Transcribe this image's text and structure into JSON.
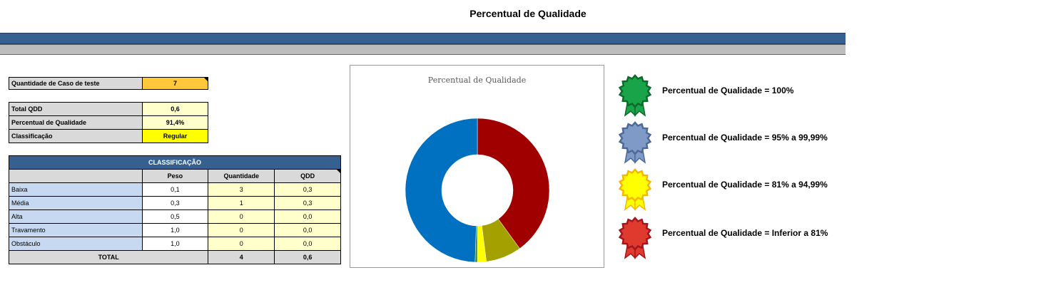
{
  "page_title": "Percentual de Qualidade",
  "summary": {
    "test_cases": {
      "label": "Quantidade de Caso de teste",
      "value": "7"
    },
    "total_qdd": {
      "label": "Total QDD",
      "value": "0,6"
    },
    "quality_pct": {
      "label": "Percentual de Qualidade",
      "value": "91,4%"
    },
    "classification": {
      "label": "Classificação",
      "value": "Regular"
    }
  },
  "class_table": {
    "title": "CLASSIFICAÇÃO",
    "headers": [
      "",
      "Peso",
      "Quantidade",
      "QDD"
    ],
    "rows": [
      {
        "name": "Baixa",
        "peso": "0,1",
        "quantidade": "3",
        "qdd": "0,3"
      },
      {
        "name": "Média",
        "peso": "0,3",
        "quantidade": "1",
        "qdd": "0,3"
      },
      {
        "name": "Alta",
        "peso": "0,5",
        "quantidade": "0",
        "qdd": "0,0"
      },
      {
        "name": "Travamento",
        "peso": "1,0",
        "quantidade": "0",
        "qdd": "0,0"
      },
      {
        "name": "Obstáculo",
        "peso": "1,0",
        "quantidade": "0",
        "qdd": "0,0"
      }
    ],
    "total": {
      "label": "TOTAL",
      "quantidade": "4",
      "qdd": "0,6"
    }
  },
  "chart_data": {
    "type": "pie",
    "donut": true,
    "title": "Percentual de Qualidade",
    "slices": [
      {
        "value": 40,
        "color": "#a00000"
      },
      {
        "value": 8,
        "color": "#a3a000"
      },
      {
        "value": 2,
        "color": "#ffff00"
      },
      {
        "value": 0.5,
        "color": "#2e8b2e"
      },
      {
        "value": 49.5,
        "color": "#0070c0"
      }
    ],
    "legend": "none"
  },
  "legend": [
    {
      "text": "Percentual de Qualidade = 100%",
      "color": "#1aa44a",
      "stroke": "#0a6b2a",
      "icon": "green-medal-icon"
    },
    {
      "text": "Percentual de Qualidade = 95% a 99,99%",
      "color": "#7f9ac7",
      "stroke": "#4e6a99",
      "icon": "blue-medal-icon"
    },
    {
      "text": "Percentual de Qualidade = 81% a 94,99%",
      "color": "#ffff00",
      "stroke": "#f5b800",
      "icon": "yellow-medal-icon"
    },
    {
      "text": "Percentual de Qualidade = Inferior a 81%",
      "color": "#e03a2f",
      "stroke": "#a3161c",
      "icon": "red-medal-icon"
    }
  ]
}
